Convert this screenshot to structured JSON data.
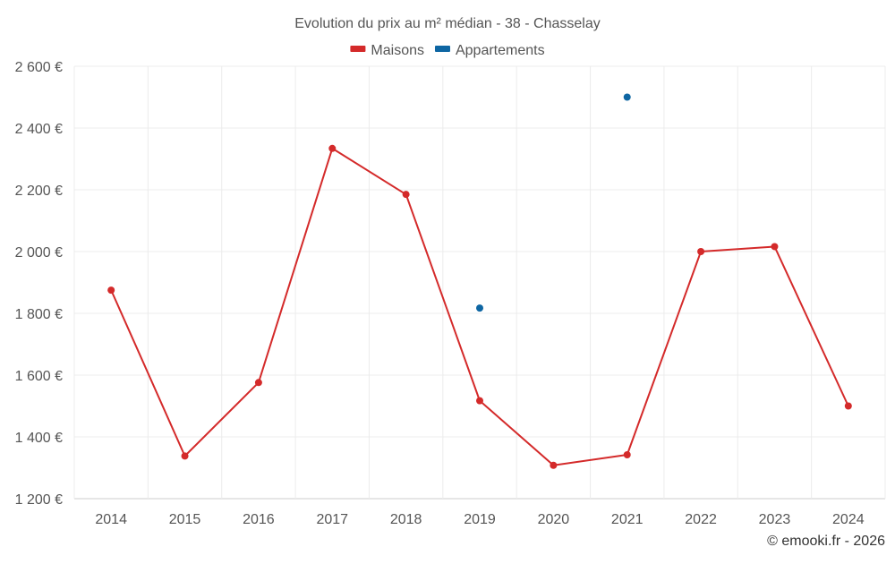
{
  "chart_data": {
    "type": "line",
    "title": "Evolution du prix au m² médian - 38 - Chasselay",
    "categories": [
      "2014",
      "2015",
      "2016",
      "2017",
      "2018",
      "2019",
      "2020",
      "2021",
      "2022",
      "2023",
      "2024"
    ],
    "series": [
      {
        "name": "Maisons",
        "color": "#d42a2a",
        "values": [
          1875,
          1338,
          1576,
          2334,
          2185,
          1517,
          1308,
          1342,
          2000,
          2016,
          1500
        ]
      },
      {
        "name": "Appartements",
        "color": "#0e66a3",
        "values": [
          null,
          null,
          null,
          null,
          null,
          1817,
          null,
          2500,
          null,
          null,
          null
        ]
      }
    ],
    "ylim": [
      1200,
      2600
    ],
    "yticks": [
      1200,
      1400,
      1600,
      1800,
      2000,
      2200,
      2400,
      2600
    ],
    "ytick_labels": [
      "1 200 €",
      "1 400 €",
      "1 600 €",
      "1 800 €",
      "2 000 €",
      "2 200 €",
      "2 400 €",
      "2 600 €"
    ],
    "grid": true,
    "legend_position": "top-center"
  },
  "credit": "© emooki.fr - 2026"
}
